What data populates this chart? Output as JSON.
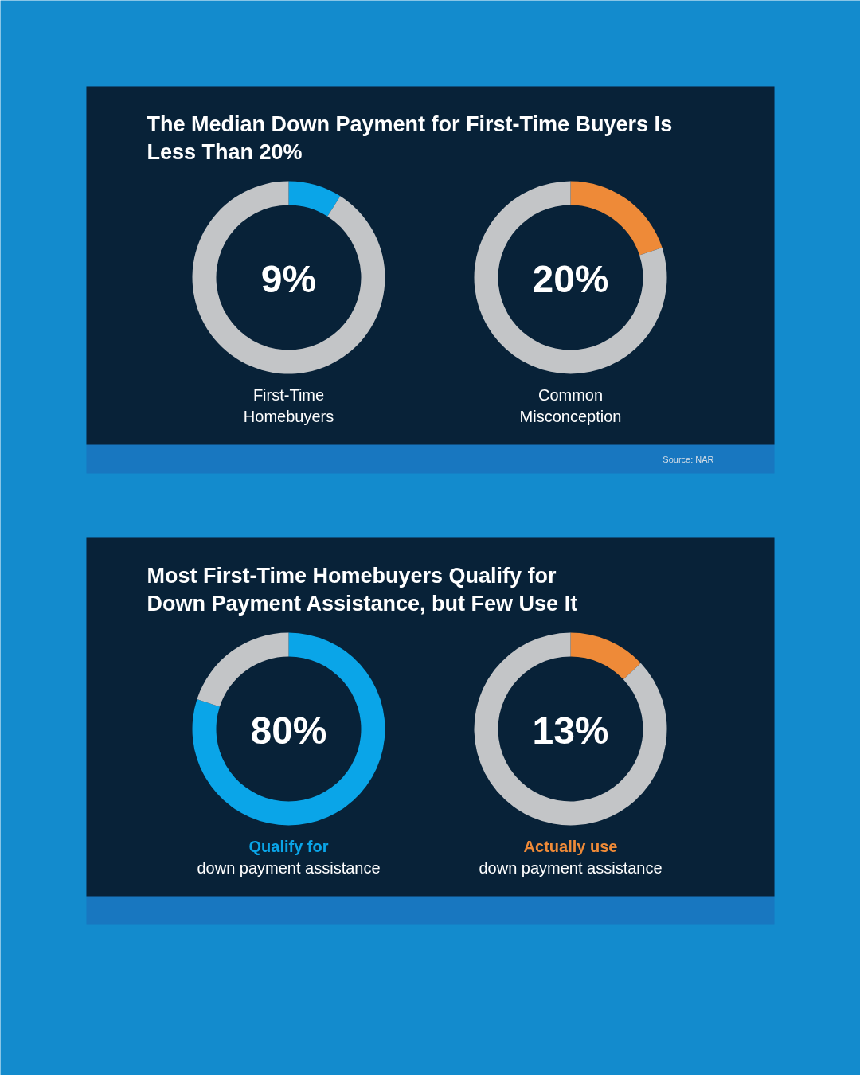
{
  "chart_data": [
    {
      "type": "donut",
      "title": "The Median Down Payment for First-Time Buyers Is\nLess Than 20%",
      "categories": [
        null,
        null
      ],
      "values": [
        9,
        91
      ],
      "colors": [
        "#0aa5e8",
        "#c3c5c7"
      ],
      "xlabel": "First-Time\nHomebuyers",
      "annotations": [
        "9%"
      ]
    },
    {
      "type": "donut",
      "categories": [
        null,
        null
      ],
      "values": [
        20,
        80
      ],
      "colors": [
        "#ee8a38",
        "#c3c5c7"
      ],
      "xlabel": "Common\nMisconception",
      "annotations": [
        "20%",
        "Source: NAR"
      ]
    },
    {
      "type": "donut",
      "title": "Most First-Time Homebuyers Qualify for\nDown Payment Assistance, but Few Use It",
      "subtitle": "Qualify for",
      "categories": [
        null,
        null
      ],
      "values": [
        80,
        20
      ],
      "colors": [
        "#0aa5e8",
        "#c3c5c7"
      ],
      "xlabel": "down payment assistance",
      "annotations": [
        "80%"
      ]
    },
    {
      "type": "donut",
      "subtitle": "Actually use",
      "categories": [
        null,
        null
      ],
      "values": [
        13,
        87
      ],
      "colors": [
        "#ee8a38",
        "#c3c5c7"
      ],
      "xlabel": "down payment assistance",
      "annotations": [
        "13%"
      ]
    }
  ]
}
